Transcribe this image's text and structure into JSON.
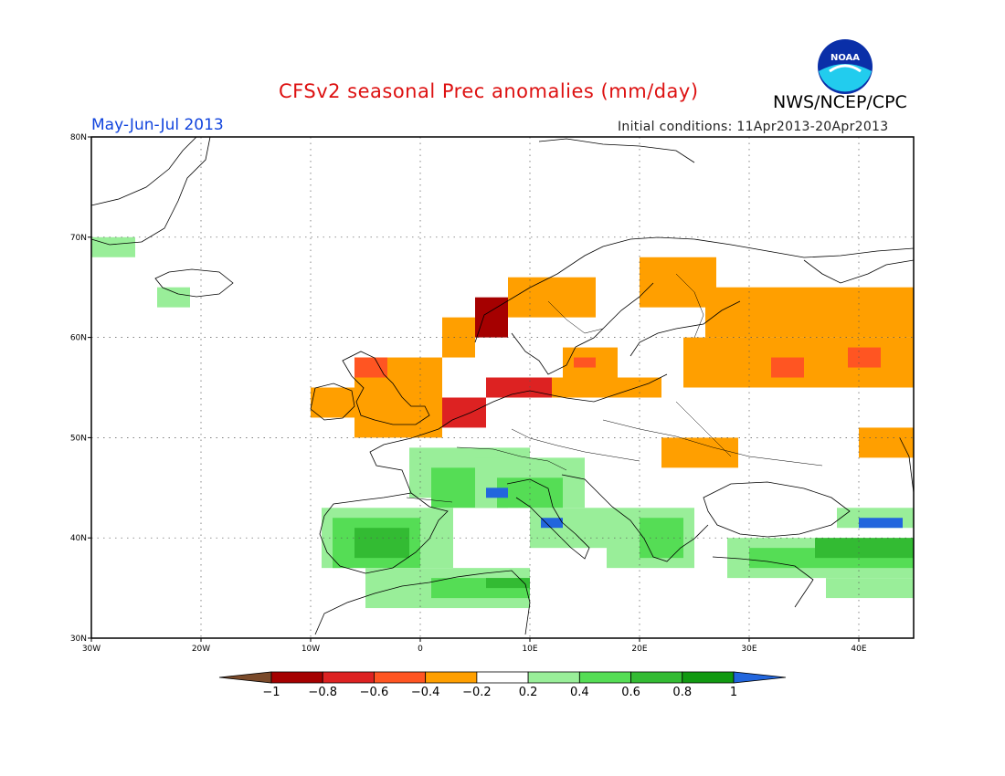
{
  "header": {
    "title": "CFSv2 seasonal Prec anomalies (mm/day)",
    "agency": "NWS/NCEP/CPC",
    "period": "May-Jun-Jul 2013",
    "initial_conditions": "Initial conditions: 11Apr2013-20Apr2013",
    "logo_text": "NOAA"
  },
  "map": {
    "lon_range": [
      -30,
      45
    ],
    "lat_range": [
      30,
      80
    ],
    "lat_ticks": [
      {
        "value": 80,
        "label": "80N"
      },
      {
        "value": 70,
        "label": "70N"
      },
      {
        "value": 60,
        "label": "60N"
      },
      {
        "value": 50,
        "label": "50N"
      },
      {
        "value": 40,
        "label": "40N"
      },
      {
        "value": 30,
        "label": "30N"
      }
    ],
    "lon_ticks": [
      {
        "value": -30,
        "label": "30W"
      },
      {
        "value": -20,
        "label": "20W"
      },
      {
        "value": -10,
        "label": "10W"
      },
      {
        "value": 0,
        "label": "0"
      },
      {
        "value": 10,
        "label": "10E"
      },
      {
        "value": 20,
        "label": "20E"
      },
      {
        "value": 30,
        "label": "30E"
      },
      {
        "value": 40,
        "label": "40E"
      }
    ],
    "grid": "dotted"
  },
  "colorbar": {
    "colors": [
      "#7a4a2a",
      "#a50000",
      "#dd2222",
      "#ff5522",
      "#ff9f00",
      "#ffffff",
      "#99ee99",
      "#55dd55",
      "#33bb33",
      "#119911",
      "#2266dd"
    ],
    "labels": [
      "−1",
      "−0.8",
      "−0.6",
      "−0.4",
      "−0.2",
      "0.2",
      "0.4",
      "0.6",
      "0.8",
      "1"
    ]
  },
  "colors": {
    "dark_red": "#a50000",
    "red": "#dd2222",
    "red_orange": "#ff5522",
    "orange": "#ff9f00",
    "light_green": "#99ee99",
    "green": "#55dd55",
    "mid_green": "#33bb33",
    "dark_green": "#119911",
    "blue": "#2266dd"
  },
  "anomaly_regions": [
    {
      "level": "orange",
      "lon": [
        2,
        5
      ],
      "lat": [
        58,
        62
      ]
    },
    {
      "level": "dark_red",
      "lon": [
        5,
        8
      ],
      "lat": [
        60,
        64
      ]
    },
    {
      "level": "orange",
      "lon": [
        8,
        16
      ],
      "lat": [
        62,
        66
      ]
    },
    {
      "level": "orange",
      "lon": [
        20,
        27
      ],
      "lat": [
        63,
        68
      ]
    },
    {
      "level": "orange",
      "lon": [
        26,
        45
      ],
      "lat": [
        60,
        65
      ]
    },
    {
      "level": "orange",
      "lon": [
        24,
        45
      ],
      "lat": [
        55,
        60
      ]
    },
    {
      "level": "red_orange",
      "lon": [
        32,
        35
      ],
      "lat": [
        56,
        58
      ]
    },
    {
      "level": "red_orange",
      "lon": [
        39,
        42
      ],
      "lat": [
        57,
        59
      ]
    },
    {
      "level": "orange",
      "lon": [
        13,
        18
      ],
      "lat": [
        55,
        59
      ]
    },
    {
      "level": "red_orange",
      "lon": [
        14,
        16
      ],
      "lat": [
        57,
        58
      ]
    },
    {
      "level": "orange",
      "lon": [
        6,
        22
      ],
      "lat": [
        54,
        56
      ]
    },
    {
      "level": "red",
      "lon": [
        6,
        12
      ],
      "lat": [
        54,
        56
      ]
    },
    {
      "level": "red",
      "lon": [
        0,
        6
      ],
      "lat": [
        51,
        54
      ]
    },
    {
      "level": "orange",
      "lon": [
        -10,
        -6
      ],
      "lat": [
        52,
        55
      ]
    },
    {
      "level": "orange",
      "lon": [
        -6,
        2
      ],
      "lat": [
        50,
        58
      ]
    },
    {
      "level": "red_orange",
      "lon": [
        -6,
        -3
      ],
      "lat": [
        56,
        58
      ]
    },
    {
      "level": "orange",
      "lon": [
        22,
        29
      ],
      "lat": [
        47,
        50
      ]
    },
    {
      "level": "orange",
      "lon": [
        40,
        45
      ],
      "lat": [
        48,
        51
      ]
    },
    {
      "level": "light_green",
      "lon": [
        -30,
        -26
      ],
      "lat": [
        68,
        70
      ]
    },
    {
      "level": "light_green",
      "lon": [
        -24,
        -21
      ],
      "lat": [
        63,
        65
      ]
    },
    {
      "level": "light_green",
      "lon": [
        -1,
        10
      ],
      "lat": [
        44,
        49
      ]
    },
    {
      "level": "green",
      "lon": [
        1,
        8
      ],
      "lat": [
        43,
        47
      ]
    },
    {
      "level": "light_green",
      "lon": [
        5,
        15
      ],
      "lat": [
        43,
        48
      ]
    },
    {
      "level": "green",
      "lon": [
        7,
        13
      ],
      "lat": [
        43,
        46
      ]
    },
    {
      "level": "blue",
      "lon": [
        6,
        8
      ],
      "lat": [
        44,
        45
      ]
    },
    {
      "level": "light_green",
      "lon": [
        -9,
        3
      ],
      "lat": [
        37,
        43
      ]
    },
    {
      "level": "green",
      "lon": [
        -8,
        0
      ],
      "lat": [
        37,
        42
      ]
    },
    {
      "level": "mid_green",
      "lon": [
        -6,
        -1
      ],
      "lat": [
        38,
        41
      ]
    },
    {
      "level": "light_green",
      "lon": [
        -5,
        10
      ],
      "lat": [
        33,
        37
      ]
    },
    {
      "level": "green",
      "lon": [
        1,
        10
      ],
      "lat": [
        34,
        36
      ]
    },
    {
      "level": "mid_green",
      "lon": [
        6,
        10
      ],
      "lat": [
        35,
        36
      ]
    },
    {
      "level": "light_green",
      "lon": [
        10,
        17
      ],
      "lat": [
        39,
        43
      ]
    },
    {
      "level": "blue",
      "lon": [
        11,
        13
      ],
      "lat": [
        41,
        42
      ]
    },
    {
      "level": "light_green",
      "lon": [
        17,
        25
      ],
      "lat": [
        37,
        43
      ]
    },
    {
      "level": "green",
      "lon": [
        20,
        24
      ],
      "lat": [
        38,
        42
      ]
    },
    {
      "level": "light_green",
      "lon": [
        28,
        45
      ],
      "lat": [
        36,
        40
      ]
    },
    {
      "level": "green",
      "lon": [
        30,
        45
      ],
      "lat": [
        37,
        39
      ]
    },
    {
      "level": "mid_green",
      "lon": [
        36,
        45
      ],
      "lat": [
        38,
        40
      ]
    },
    {
      "level": "light_green",
      "lon": [
        38,
        45
      ],
      "lat": [
        41,
        43
      ]
    },
    {
      "level": "blue",
      "lon": [
        40,
        44
      ],
      "lat": [
        41,
        42
      ]
    },
    {
      "level": "light_green",
      "lon": [
        37,
        45
      ],
      "lat": [
        34,
        36
      ]
    }
  ]
}
